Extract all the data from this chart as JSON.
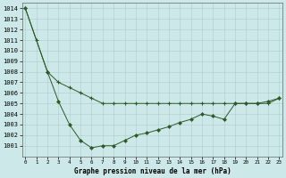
{
  "series1_x": [
    0,
    1,
    2,
    3,
    4,
    5,
    6,
    7,
    8,
    9,
    10,
    11,
    12,
    13,
    14,
    15,
    16,
    17,
    18,
    19,
    20,
    21,
    22,
    23
  ],
  "series1_y": [
    1014,
    1011,
    1008,
    1007,
    1006.5,
    1006,
    1005.5,
    1005,
    1005,
    1005,
    1005,
    1005,
    1005,
    1005,
    1005,
    1005,
    1005,
    1005,
    1005,
    1005,
    1005,
    1005,
    1005,
    1005.5
  ],
  "series2_x": [
    0,
    2,
    3,
    4,
    5,
    6,
    7,
    8,
    9,
    10,
    11,
    12,
    13,
    14,
    15,
    16,
    17,
    18,
    19,
    20,
    21,
    22,
    23
  ],
  "series2_y": [
    1014,
    1008,
    1005.2,
    1003,
    1001.5,
    1000.8,
    1001,
    1001,
    1001.5,
    1002,
    1002.2,
    1002.5,
    1002.8,
    1003.2,
    1003.5,
    1004,
    1003.8,
    1003.5,
    1005,
    1005,
    1005,
    1005.2,
    1005.5
  ],
  "line_color": "#2d5a27",
  "bg_color": "#cce8e8",
  "grid_color": "#aacccc",
  "xlabel": "Graphe pression niveau de la mer (hPa)",
  "ylim_min": 1000,
  "ylim_max": 1014.5,
  "xlim_min": -0.3,
  "xlim_max": 23.3,
  "yticks": [
    1001,
    1002,
    1003,
    1004,
    1005,
    1006,
    1007,
    1008,
    1009,
    1010,
    1011,
    1012,
    1013,
    1014
  ],
  "xtick_labels": [
    "0",
    "1",
    "2",
    "3",
    "4",
    "5",
    "6",
    "7",
    "8",
    "9",
    "10",
    "11",
    "12",
    "13",
    "14",
    "15",
    "16",
    "17",
    "18",
    "19",
    "20",
    "21",
    "22",
    "23"
  ]
}
